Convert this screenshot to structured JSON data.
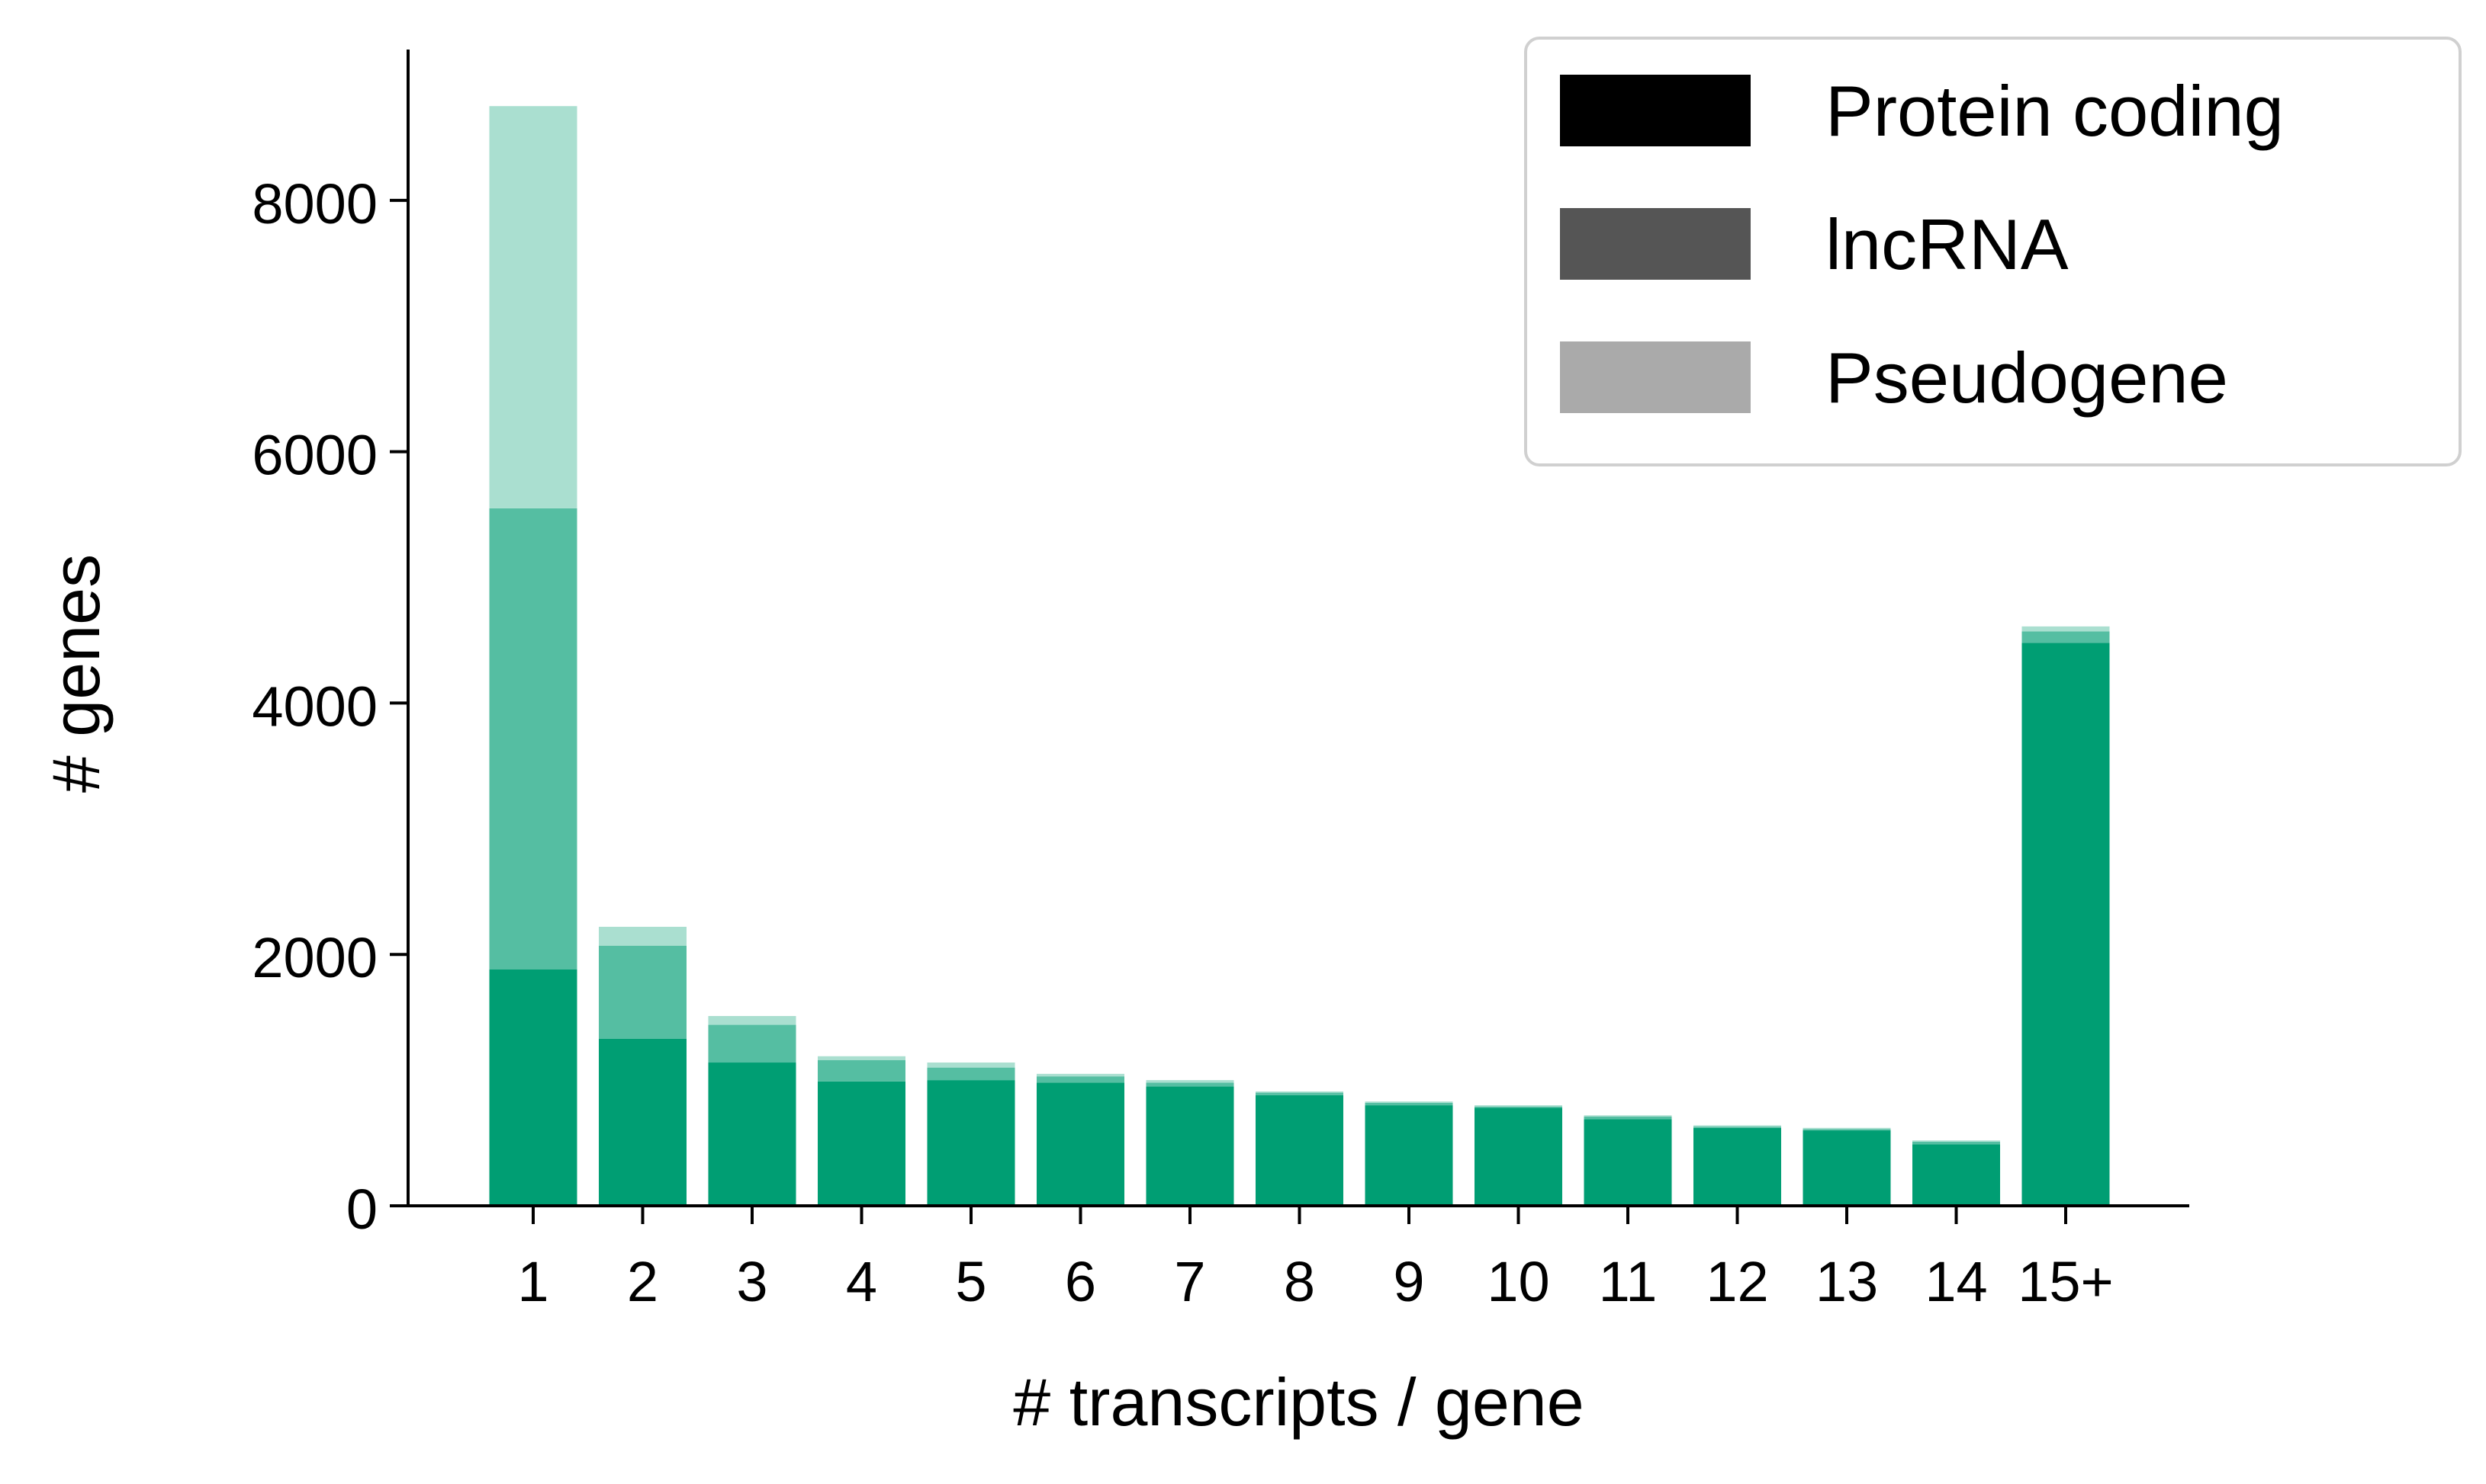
{
  "chart_data": {
    "type": "bar",
    "stacked": true,
    "title": "",
    "xlabel": "# transcripts / gene",
    "ylabel": "# genes",
    "categories": [
      "1",
      "2",
      "3",
      "4",
      "5",
      "6",
      "7",
      "8",
      "9",
      "10",
      "11",
      "12",
      "13",
      "14",
      "15+"
    ],
    "ylim": [
      0,
      9200
    ],
    "yticks": [
      0,
      2000,
      4000,
      6000,
      8000
    ],
    "grid": false,
    "legend_position": "top-right",
    "series": [
      {
        "name": "Protein coding",
        "legend_swatch": "#000000",
        "color": "#009E73",
        "values": [
          1880,
          1330,
          1140,
          990,
          1000,
          980,
          950,
          880,
          800,
          780,
          690,
          620,
          600,
          490,
          4480
        ]
      },
      {
        "name": "lncRNA",
        "legend_swatch": "#555555",
        "color": "#55BEA2",
        "values": [
          3670,
          740,
          300,
          170,
          100,
          50,
          30,
          20,
          20,
          10,
          20,
          10,
          10,
          20,
          90
        ]
      },
      {
        "name": "Pseudogene",
        "legend_swatch": "#AAAAAA",
        "color": "#AADFD0",
        "values": [
          3200,
          150,
          70,
          30,
          40,
          20,
          20,
          10,
          10,
          10,
          10,
          10,
          10,
          10,
          40
        ]
      }
    ]
  }
}
